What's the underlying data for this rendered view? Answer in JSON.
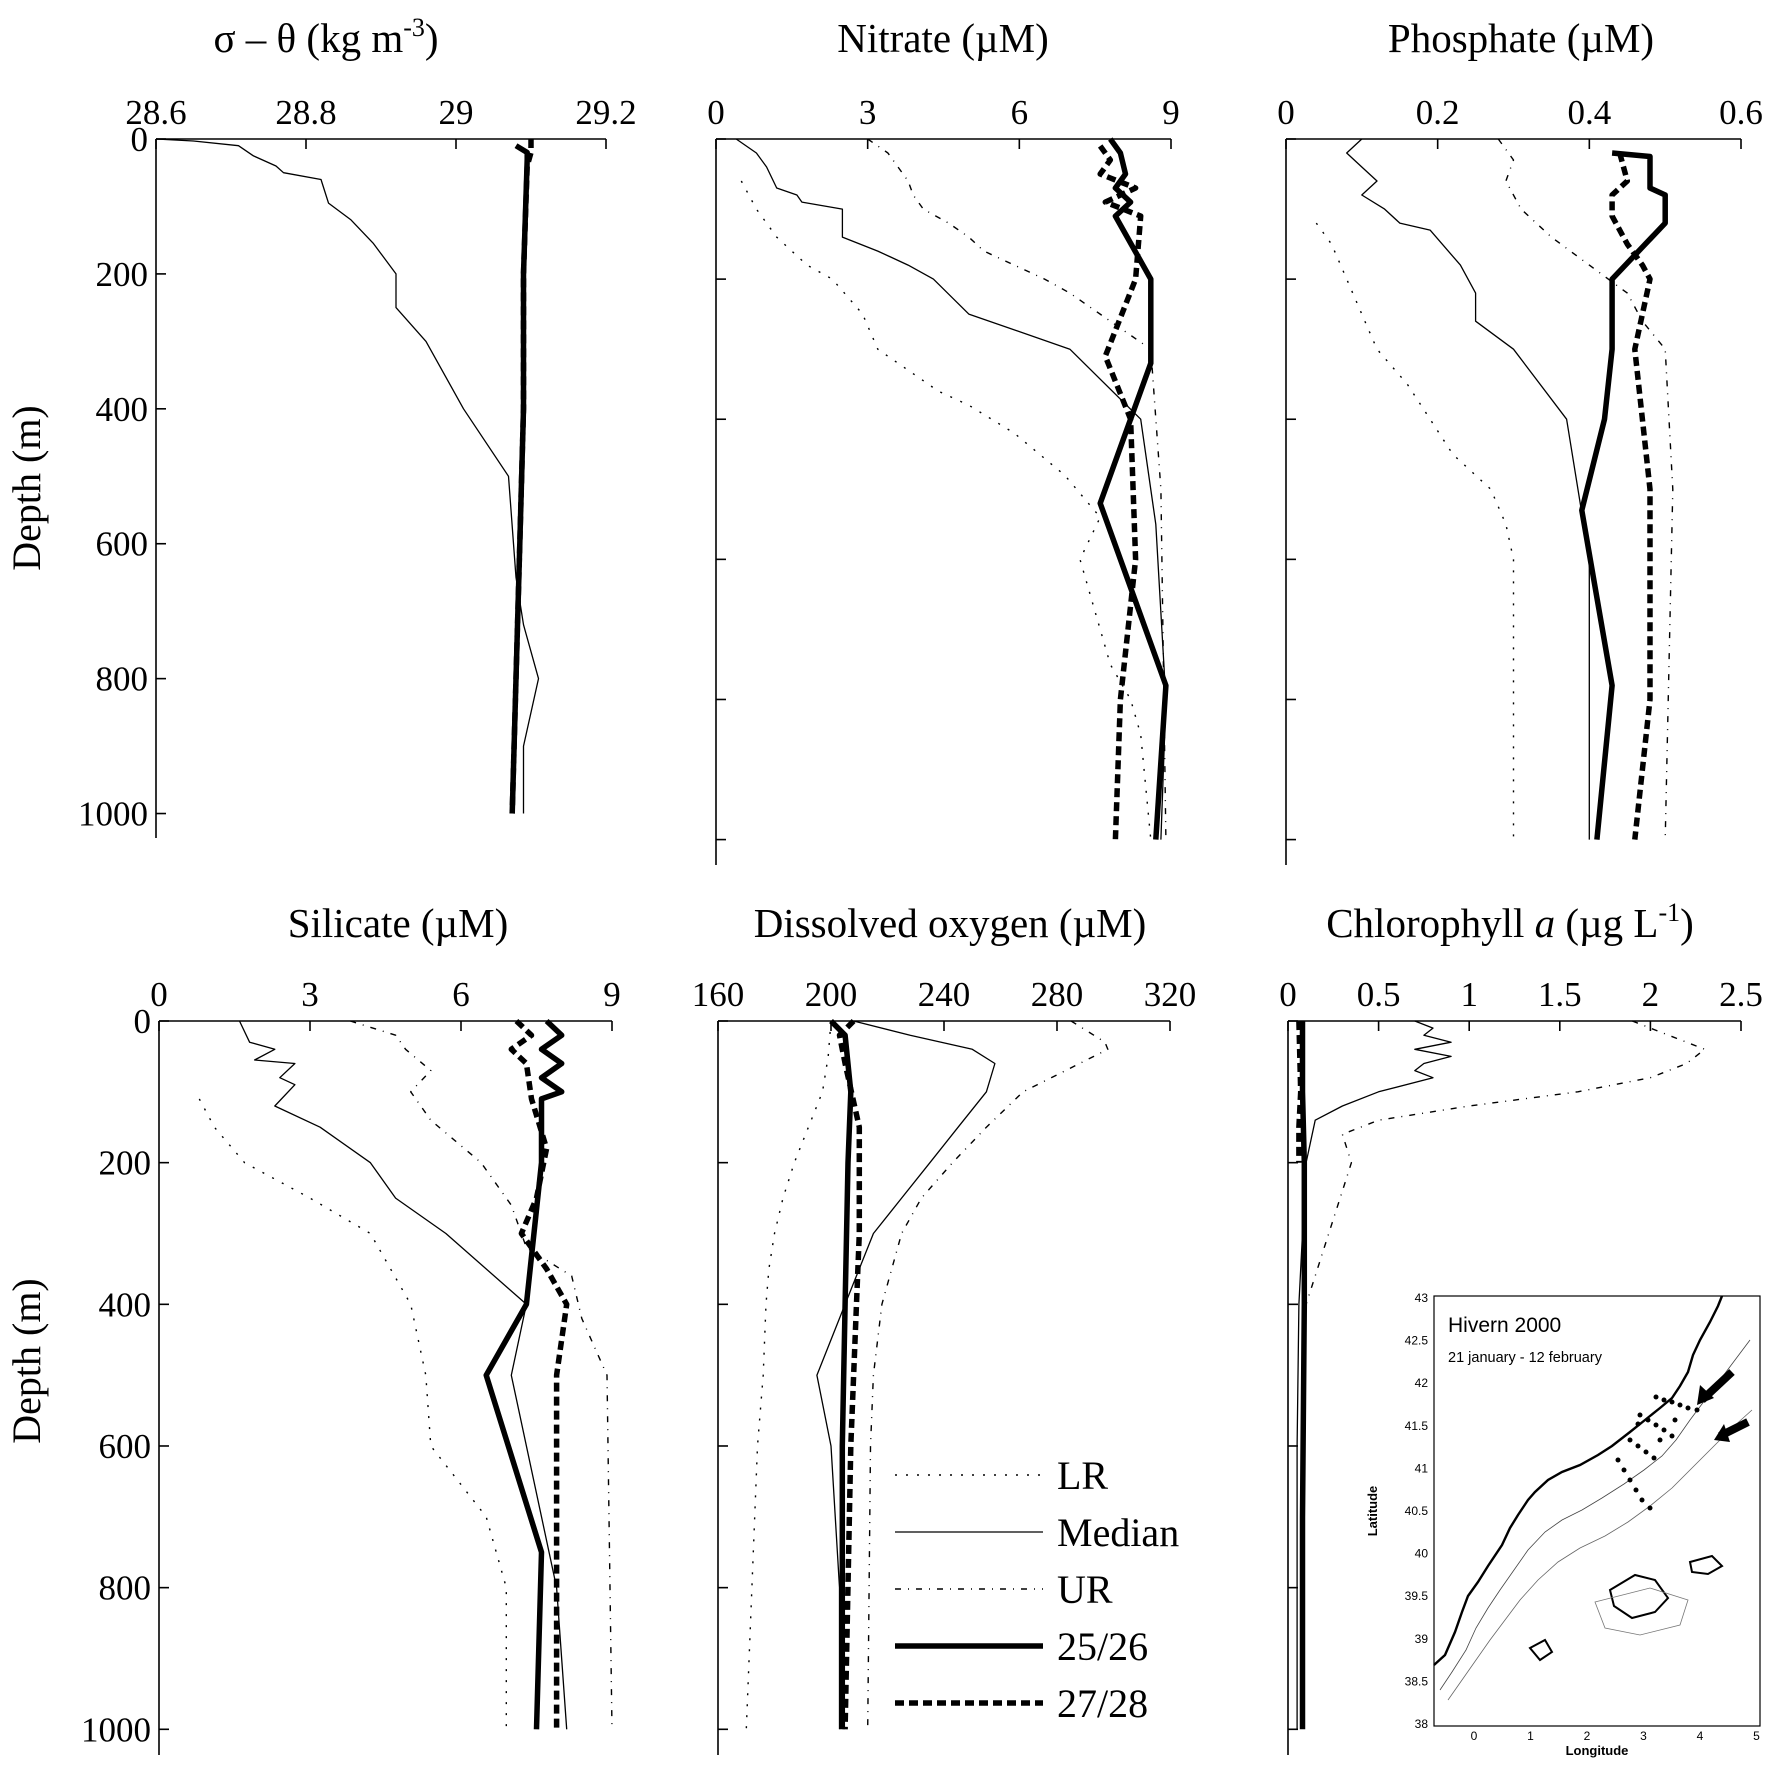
{
  "chart_data": [
    {
      "type": "line",
      "title_prefix": "σ – θ (kg m",
      "title_sup": "-3",
      "title_suffix": ")",
      "xlim": [
        28.6,
        29.2
      ],
      "xticks": [
        28.6,
        28.8,
        29,
        29.2
      ],
      "xtick_labels": [
        "28.6",
        "28.8",
        "29",
        "29.2"
      ],
      "ylabel": "Depth (m)",
      "ylim": [
        0,
        1000
      ],
      "yticks": [
        0,
        200,
        400,
        600,
        800,
        1000
      ],
      "ytick_labels": [
        "0",
        "200",
        "400",
        "600",
        "800",
        "1000"
      ],
      "series": [
        {
          "name": "Median",
          "style": "median",
          "x": [
            28.6,
            28.65,
            28.71,
            28.73,
            28.76,
            28.77,
            28.82,
            28.83,
            28.86,
            28.89,
            28.92,
            28.92,
            28.96,
            29.01,
            29.07,
            29.08,
            29.09,
            29.11,
            29.09,
            29.09
          ],
          "y": [
            0,
            3,
            10,
            25,
            40,
            50,
            60,
            95,
            120,
            155,
            200,
            250,
            300,
            400,
            500,
            650,
            720,
            800,
            900,
            1000
          ]
        },
        {
          "name": "25/26",
          "style": "solid",
          "x": [
            29.08,
            29.095,
            29.095,
            29.09,
            29.09,
            29.085,
            29.08,
            29.075
          ],
          "y": [
            10,
            20,
            30,
            200,
            400,
            600,
            800,
            1000
          ]
        },
        {
          "name": "27/28",
          "style": "dashed",
          "x": [
            29.1,
            29.1,
            29.095,
            29.09,
            29.09,
            29.085,
            29.08,
            29.075
          ],
          "y": [
            0,
            20,
            40,
            200,
            400,
            600,
            800,
            1000
          ]
        }
      ]
    },
    {
      "type": "line",
      "title": "Nitrate (µM)",
      "xlim": [
        0,
        9
      ],
      "xticks": [
        0,
        3,
        6,
        9
      ],
      "xtick_labels": [
        "0",
        "3",
        "6",
        "9"
      ],
      "ylim": [
        0,
        1000
      ],
      "yticks": [
        0,
        200,
        400,
        600,
        800,
        1000
      ],
      "series": [
        {
          "name": "LR",
          "style": "lr",
          "x": [
            0.5,
            0.8,
            1.2,
            1.8,
            2.3,
            2.9,
            3.2,
            3.8,
            4.4,
            5.0,
            5.9,
            6.9,
            7.6,
            7.2,
            7.6,
            7.8,
            8.2,
            8.4,
            8.6
          ],
          "y": [
            60,
            100,
            140,
            180,
            200,
            250,
            300,
            330,
            360,
            380,
            420,
            480,
            540,
            600,
            700,
            750,
            800,
            850,
            1000
          ]
        },
        {
          "name": "Median",
          "style": "median",
          "x": [
            0.4,
            0.8,
            1.0,
            1.2,
            1.6,
            1.7,
            2.5,
            2.5,
            3.2,
            3.8,
            4.3,
            5.0,
            7.0,
            8.4,
            8.7,
            8.9,
            8.8
          ],
          "y": [
            0,
            20,
            40,
            70,
            80,
            90,
            100,
            140,
            160,
            180,
            200,
            250,
            300,
            400,
            550,
            800,
            1000
          ]
        },
        {
          "name": "UR",
          "style": "ur",
          "x": [
            3.0,
            3.4,
            3.6,
            3.8,
            3.9,
            4.1,
            4.6,
            5.0,
            5.3,
            5.9,
            6.5,
            7.0,
            7.8,
            8.6,
            8.8,
            8.9
          ],
          "y": [
            0,
            20,
            40,
            60,
            80,
            100,
            120,
            140,
            160,
            180,
            200,
            220,
            260,
            300,
            500,
            1000
          ]
        },
        {
          "name": "25/26",
          "style": "solid",
          "x": [
            7.8,
            8.0,
            8.1,
            7.9,
            8.2,
            7.9,
            8.6,
            8.6,
            7.6,
            8.9,
            8.7
          ],
          "y": [
            0,
            20,
            50,
            70,
            90,
            110,
            200,
            320,
            520,
            780,
            1000
          ]
        },
        {
          "name": "27/28",
          "style": "dashed",
          "x": [
            7.6,
            7.8,
            7.6,
            8.3,
            7.7,
            8.4,
            8.3,
            7.7,
            8.2,
            8.3,
            8.0,
            7.9
          ],
          "y": [
            10,
            30,
            50,
            70,
            90,
            110,
            200,
            310,
            400,
            600,
            800,
            1000
          ]
        }
      ]
    },
    {
      "type": "line",
      "title": "Phosphate (µM)",
      "xlim": [
        0,
        0.6
      ],
      "xticks": [
        0,
        0.2,
        0.4,
        0.6
      ],
      "xtick_labels": [
        "0",
        "0.2",
        "0.4",
        "0.6"
      ],
      "ylim": [
        0,
        1000
      ],
      "yticks": [
        0,
        200,
        400,
        600,
        800,
        1000
      ],
      "series": [
        {
          "name": "LR",
          "style": "lr",
          "x": [
            0.04,
            0.06,
            0.08,
            0.1,
            0.12,
            0.16,
            0.19,
            0.22,
            0.27,
            0.29,
            0.3,
            0.3,
            0.3
          ],
          "y": [
            120,
            150,
            200,
            250,
            300,
            350,
            400,
            450,
            500,
            550,
            600,
            800,
            1000
          ]
        },
        {
          "name": "Median",
          "style": "median",
          "x": [
            0.1,
            0.08,
            0.1,
            0.12,
            0.1,
            0.13,
            0.15,
            0.19,
            0.23,
            0.25,
            0.25,
            0.3,
            0.37,
            0.4,
            0.4,
            0.4
          ],
          "y": [
            0,
            20,
            40,
            60,
            80,
            100,
            120,
            130,
            180,
            220,
            260,
            300,
            400,
            600,
            800,
            1000
          ]
        },
        {
          "name": "UR",
          "style": "ur",
          "x": [
            0.28,
            0.3,
            0.29,
            0.31,
            0.35,
            0.4,
            0.45,
            0.47,
            0.5,
            0.51,
            0.5
          ],
          "y": [
            0,
            30,
            60,
            100,
            140,
            180,
            220,
            260,
            300,
            500,
            1000
          ]
        },
        {
          "name": "25/26",
          "style": "solid",
          "x": [
            0.43,
            0.48,
            0.48,
            0.5,
            0.5,
            0.43,
            0.43,
            0.42,
            0.39,
            0.43,
            0.41
          ],
          "y": [
            20,
            25,
            70,
            80,
            120,
            200,
            300,
            400,
            530,
            780,
            1000
          ]
        },
        {
          "name": "27/28",
          "style": "dashed",
          "x": [
            0.44,
            0.45,
            0.43,
            0.43,
            0.45,
            0.47,
            0.48,
            0.46,
            0.48,
            0.48,
            0.46
          ],
          "y": [
            20,
            60,
            80,
            110,
            150,
            180,
            200,
            300,
            500,
            800,
            1000
          ]
        }
      ]
    },
    {
      "type": "line",
      "title": "Silicate (µM)",
      "xlim": [
        0,
        9
      ],
      "xticks": [
        0,
        3,
        6,
        9
      ],
      "xtick_labels": [
        "0",
        "3",
        "6",
        "9"
      ],
      "ylabel": "Depth (m)",
      "ylim": [
        0,
        1000
      ],
      "yticks": [
        0,
        200,
        400,
        600,
        800,
        1000
      ],
      "ytick_labels": [
        "0",
        "200",
        "400",
        "600",
        "800",
        "1000"
      ],
      "series": [
        {
          "name": "LR",
          "style": "lr",
          "x": [
            0.8,
            1.1,
            1.7,
            3.0,
            4.2,
            5.0,
            5.3,
            5.4,
            6.5,
            6.9,
            6.9
          ],
          "y": [
            110,
            150,
            200,
            250,
            300,
            400,
            500,
            600,
            700,
            800,
            1000
          ]
        },
        {
          "name": "Median",
          "style": "median",
          "x": [
            1.6,
            1.8,
            2.3,
            1.9,
            2.7,
            2.4,
            2.7,
            2.3,
            3.2,
            4.2,
            4.7,
            5.7,
            7.3,
            7.0,
            7.9,
            8.1
          ],
          "y": [
            0,
            30,
            40,
            55,
            60,
            80,
            90,
            120,
            150,
            200,
            250,
            300,
            400,
            500,
            800,
            1000
          ]
        },
        {
          "name": "UR",
          "style": "ur",
          "x": [
            3.8,
            4.7,
            4.9,
            5.4,
            5.0,
            5.4,
            6.4,
            7.0,
            7.3,
            8.2,
            8.4,
            8.9,
            9.0
          ],
          "y": [
            0,
            20,
            40,
            70,
            100,
            140,
            200,
            260,
            320,
            360,
            420,
            500,
            1000
          ]
        },
        {
          "name": "25/26",
          "style": "solid",
          "x": [
            7.7,
            8.0,
            7.6,
            8.0,
            7.6,
            8.0,
            7.6,
            7.6,
            7.3,
            6.5,
            7.6,
            7.5
          ],
          "y": [
            0,
            20,
            40,
            60,
            80,
            100,
            110,
            200,
            400,
            500,
            750,
            1000
          ]
        },
        {
          "name": "27/28",
          "style": "dashed",
          "x": [
            7.1,
            7.4,
            7.0,
            7.3,
            7.4,
            7.7,
            7.5,
            7.2,
            7.7,
            8.1,
            7.9,
            7.9
          ],
          "y": [
            0,
            20,
            40,
            60,
            110,
            180,
            250,
            300,
            350,
            400,
            500,
            1000
          ]
        }
      ]
    },
    {
      "type": "line",
      "title": "Dissolved oxygen (µM)",
      "xlim": [
        160,
        320
      ],
      "xticks": [
        160,
        200,
        240,
        280,
        320
      ],
      "xtick_labels": [
        "160",
        "200",
        "240",
        "280",
        "320"
      ],
      "ylim": [
        0,
        1000
      ],
      "yticks": [
        0,
        200,
        400,
        600,
        800,
        1000
      ],
      "series": [
        {
          "name": "LR",
          "style": "lr",
          "x": [
            200,
            199,
            197,
            192,
            187,
            183,
            180,
            178,
            177,
            176,
            174,
            172,
            170
          ],
          "y": [
            0,
            50,
            100,
            150,
            200,
            250,
            300,
            350,
            400,
            500,
            600,
            800,
            1000
          ]
        },
        {
          "name": "Median",
          "style": "median",
          "x": [
            208,
            228,
            250,
            258,
            255,
            245,
            235,
            225,
            215,
            205,
            195,
            200,
            203,
            203
          ],
          "y": [
            0,
            20,
            40,
            60,
            100,
            150,
            200,
            250,
            300,
            400,
            500,
            600,
            800,
            1000
          ]
        },
        {
          "name": "UR",
          "style": "ur",
          "x": [
            285,
            297,
            298,
            283,
            268,
            255,
            243,
            232,
            225,
            218,
            215,
            214,
            213
          ],
          "y": [
            0,
            30,
            40,
            70,
            100,
            150,
            200,
            250,
            300,
            400,
            500,
            600,
            1000
          ]
        },
        {
          "name": "25/26",
          "style": "solid",
          "x": [
            200,
            205,
            207,
            206,
            205,
            204,
            204
          ],
          "y": [
            0,
            20,
            100,
            200,
            400,
            600,
            1000
          ]
        },
        {
          "name": "27/28",
          "style": "dashed",
          "x": [
            208,
            203,
            205,
            210,
            210,
            207,
            205
          ],
          "y": [
            0,
            20,
            60,
            150,
            300,
            600,
            1000
          ]
        }
      ]
    },
    {
      "type": "line",
      "title_prefix": "Chlorophyll ",
      "title_italic": "a",
      "title_mid": " (µg L",
      "title_sup": "-1",
      "title_suffix": ")",
      "xlim": [
        0,
        2.5
      ],
      "xticks": [
        0,
        0.5,
        1,
        1.5,
        2,
        2.5
      ],
      "xtick_labels": [
        "0",
        "0.5",
        "1",
        "1.5",
        "2",
        "2.5"
      ],
      "ylim": [
        0,
        1000
      ],
      "yticks": [
        0,
        200,
        400,
        600,
        800,
        1000
      ],
      "series": [
        {
          "name": "Median",
          "style": "median",
          "x": [
            0.7,
            0.8,
            0.75,
            0.9,
            0.7,
            0.9,
            0.75,
            0.7,
            0.8,
            0.5,
            0.3,
            0.15,
            0.1,
            0.08,
            0.06,
            0.05,
            0.05
          ],
          "y": [
            0,
            10,
            20,
            30,
            40,
            50,
            60,
            70,
            80,
            100,
            120,
            140,
            200,
            300,
            400,
            600,
            1000
          ]
        },
        {
          "name": "UR",
          "style": "ur",
          "x": [
            1.9,
            2.1,
            2.3,
            2.2,
            2.0,
            1.6,
            1.0,
            0.5,
            0.3,
            0.35,
            0.3,
            0.25,
            0.2,
            0.15,
            0.1,
            0.08
          ],
          "y": [
            0,
            20,
            40,
            60,
            80,
            100,
            120,
            140,
            160,
            200,
            240,
            280,
            320,
            360,
            400,
            600
          ]
        },
        {
          "name": "25/26",
          "style": "solid",
          "x": [
            0.08,
            0.08,
            0.09,
            0.09,
            0.08,
            0.08
          ],
          "y": [
            0,
            100,
            200,
            400,
            700,
            1000
          ]
        },
        {
          "name": "27/28",
          "style": "dashed",
          "x": [
            0.06,
            0.07,
            0.06,
            0.06
          ],
          "y": [
            0,
            100,
            150,
            200
          ]
        }
      ]
    }
  ],
  "legend": {
    "items": [
      {
        "label": "LR",
        "style": "lr"
      },
      {
        "label": "Median",
        "style": "median"
      },
      {
        "label": "UR",
        "style": "ur"
      },
      {
        "label": "25/26",
        "style": "solid"
      },
      {
        "label": "27/28",
        "style": "dashed"
      }
    ]
  },
  "map_inset": {
    "title": "Hivern 2000",
    "subtitle": "21 january - 12 february",
    "xlabel": "Longitude",
    "ylabel": "Latitude",
    "xticks": [
      "0",
      "1",
      "2",
      "3",
      "4",
      "5"
    ],
    "yticks": [
      "43",
      "42.5",
      "42",
      "41.5",
      "41",
      "40.5",
      "40",
      "39.5",
      "39",
      "38.5",
      "38"
    ]
  }
}
